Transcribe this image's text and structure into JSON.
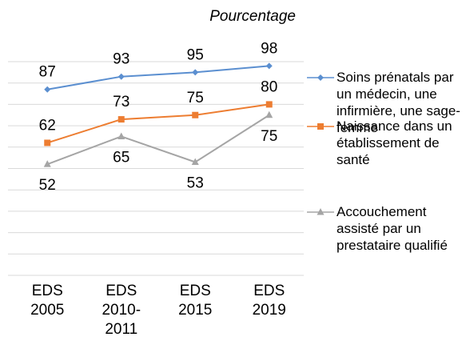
{
  "chart_data": {
    "type": "line",
    "y_label": "Pourcentage",
    "categories": [
      "EDS 2005",
      "EDS 2010-2011",
      "EDS 2015",
      "EDS 2019"
    ],
    "series": [
      {
        "name": "Soins prénatals par un médecin, une infirmière, une sage-femme",
        "color": "#5b8fd0",
        "marker": "diamond",
        "label_position": "above",
        "values": [
          87,
          93,
          95,
          98
        ]
      },
      {
        "name": "Naissance dans un établissement de santé",
        "color": "#ed7d31",
        "marker": "square",
        "label_position": "above",
        "values": [
          62,
          73,
          75,
          80
        ]
      },
      {
        "name": "Accouchement assisté par un prestataire qualifié",
        "color": "#a5a5a5",
        "marker": "triangle",
        "label_position": "below",
        "values": [
          52,
          65,
          53,
          75
        ]
      }
    ],
    "ylim": [
      0,
      100
    ],
    "yticks": [
      0,
      10,
      20,
      30,
      40,
      50,
      60,
      70,
      80,
      90,
      100
    ],
    "grid": true,
    "legend": "right"
  }
}
